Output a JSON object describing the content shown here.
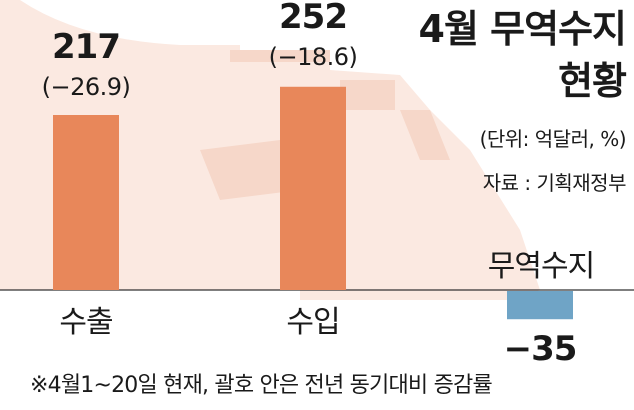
{
  "title_line1": "4월 무역수지",
  "title_line2": "현황",
  "unit": "(단위: 억달러, %)",
  "source": "자료 : 기획재정부",
  "footnote": "※4월1~20일 현재, 괄호 안은 전년 동기대비 증감률",
  "colors": {
    "positive": "#e8875a",
    "negative": "#6fa4c6",
    "background_art": "#fbe9e1"
  },
  "chart_data": {
    "type": "bar",
    "categories": [
      "수출",
      "수입",
      "무역수지"
    ],
    "values": [
      217,
      252,
      -35
    ],
    "value_labels": [
      "217",
      "252",
      "−35"
    ],
    "change_labels": [
      "(−26.9)",
      "(−18.6)",
      ""
    ],
    "title": "4월 무역수지 현황",
    "xlabel": "",
    "ylabel": "",
    "ylim": [
      -40,
      260
    ],
    "grid": false,
    "legend": "none"
  }
}
